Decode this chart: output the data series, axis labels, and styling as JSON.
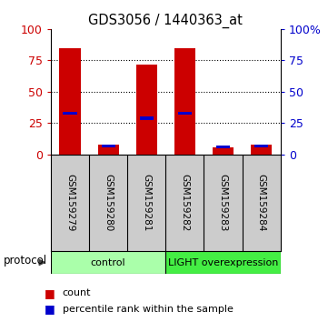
{
  "title": "GDS3056 / 1440363_at",
  "samples": [
    "GSM159279",
    "GSM159280",
    "GSM159281",
    "GSM159282",
    "GSM159283",
    "GSM159284"
  ],
  "red_values": [
    85,
    8,
    72,
    85,
    6,
    8
  ],
  "blue_values": [
    33,
    7,
    29,
    33,
    6,
    7
  ],
  "ylim": [
    0,
    100
  ],
  "yticks": [
    0,
    25,
    50,
    75,
    100
  ],
  "groups": [
    {
      "label": "control",
      "start": 0,
      "end": 3,
      "color": "#aaffaa"
    },
    {
      "label": "LIGHT overexpression",
      "start": 3,
      "end": 6,
      "color": "#44ee44"
    }
  ],
  "legend_count_color": "#cc0000",
  "legend_pct_color": "#0000cc",
  "bar_color": "#cc0000",
  "marker_color": "#0000cc",
  "left_axis_color": "#cc0000",
  "right_axis_color": "#0000cc",
  "bg_color": "#ffffff",
  "plot_bg": "#ffffff",
  "sample_area_color": "#cccccc",
  "protocol_text": "protocol",
  "bar_width": 0.55,
  "right_ytick_labels": [
    "0",
    "25",
    "50",
    "75",
    "100%"
  ]
}
